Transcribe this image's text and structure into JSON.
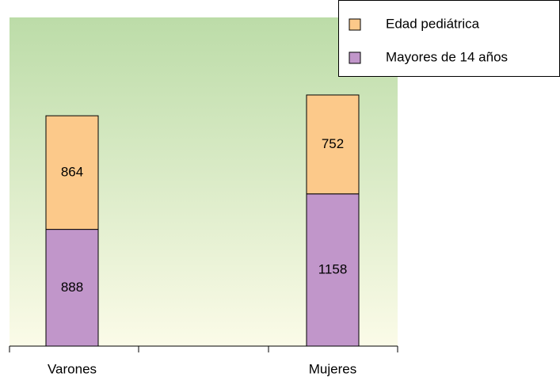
{
  "chart_data": {
    "type": "stacked_bar",
    "categories": [
      "Varones",
      "Mujeres"
    ],
    "series": [
      {
        "name": "Edad pediátrica",
        "color": "#fcc98a",
        "values": [
          864,
          752
        ]
      },
      {
        "name": "Mayores de 14 años",
        "color": "#c196ca",
        "values": [
          888,
          1158
        ]
      }
    ],
    "ylim": [
      0,
      2500
    ],
    "legend": "top-right",
    "data_labels": true
  }
}
